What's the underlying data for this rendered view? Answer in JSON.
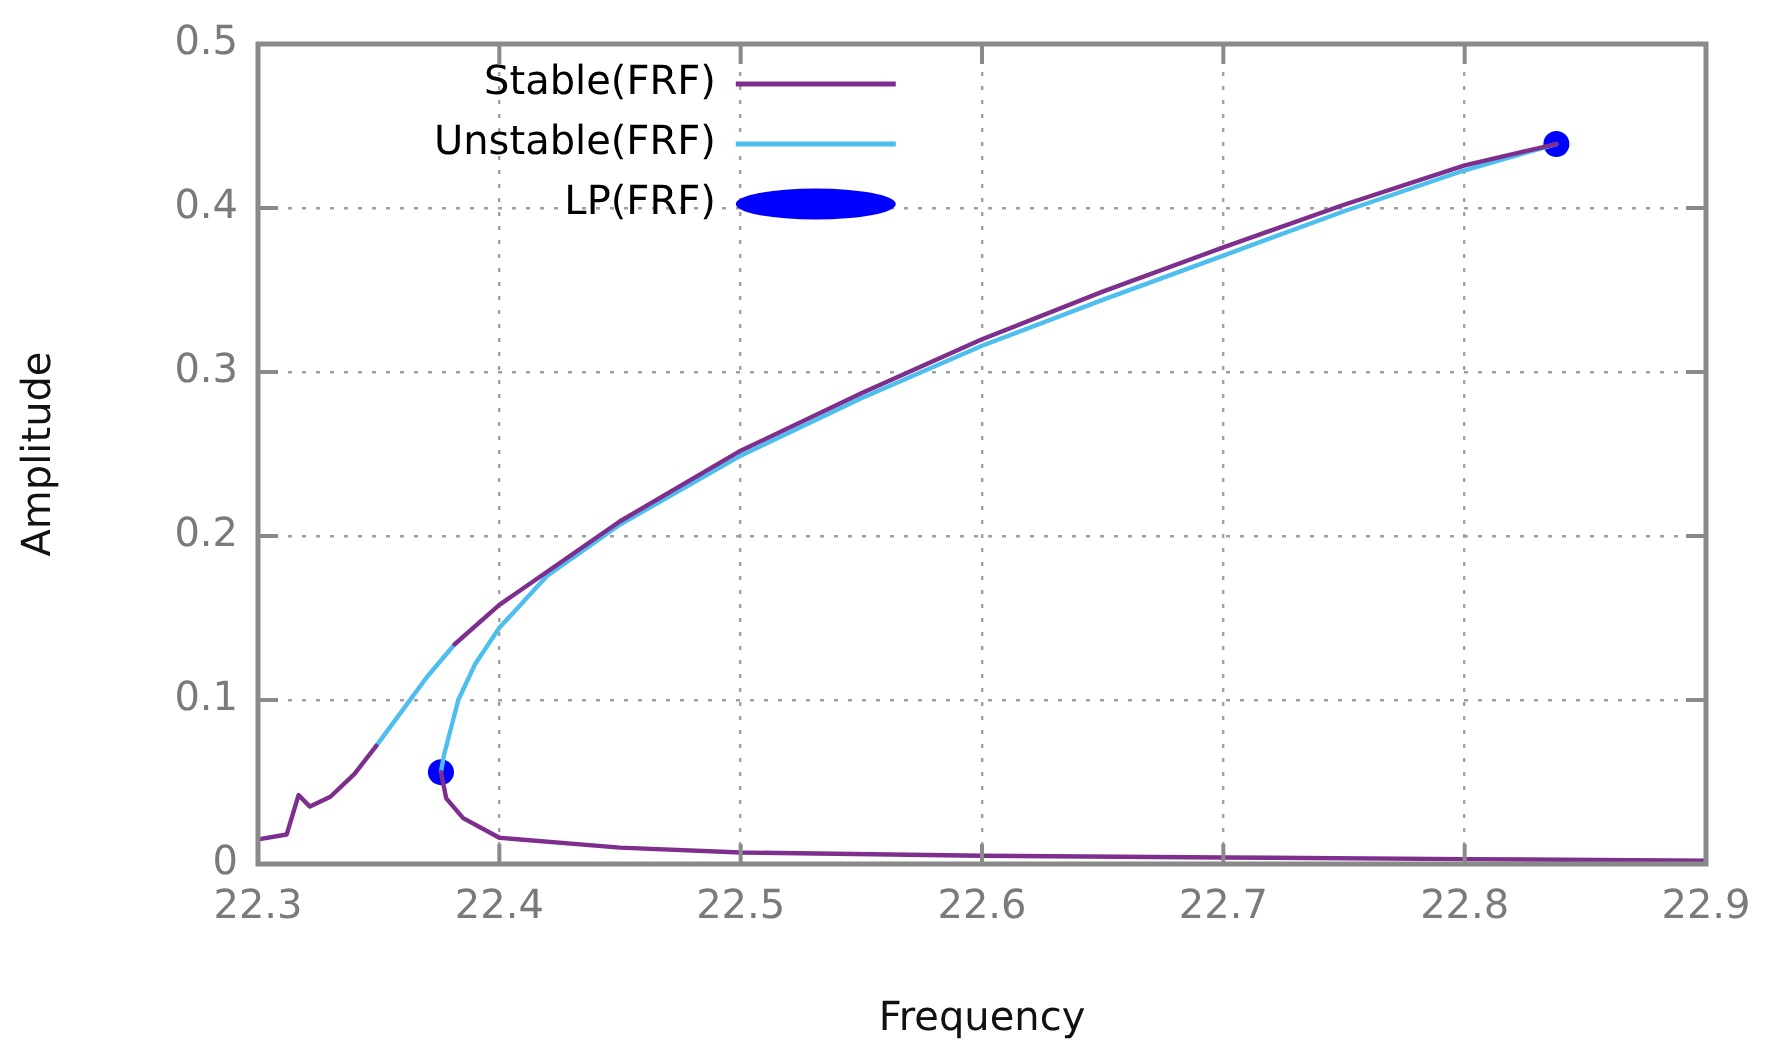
{
  "chart_data": {
    "type": "line",
    "xlabel": "Frequency",
    "ylabel": "Amplitude",
    "xlim": [
      22.3,
      22.9
    ],
    "xticks": [
      22.3,
      22.4,
      22.5,
      22.6,
      22.7,
      22.8,
      22.9
    ],
    "ylim": [
      0,
      0.5
    ],
    "yticks": [
      0,
      0.1,
      0.2,
      0.3,
      0.4,
      0.5
    ],
    "grid": true,
    "legend": "top left",
    "series": [
      {
        "name": "Stable(FRF)",
        "type": "line",
        "color": "#7e2f8e",
        "x": [
          22.3,
          22.3119,
          22.3168,
          22.3215,
          22.33,
          22.34,
          22.349,
          22.36,
          22.3815,
          22.4,
          22.45,
          22.5,
          22.55,
          22.6,
          22.65,
          22.7,
          22.75,
          22.8,
          22.838,
          22.6,
          22.3758,
          22.378,
          22.385,
          22.4,
          22.45,
          22.5,
          22.6,
          22.7,
          22.8,
          22.9
        ],
        "values": [
          0.015,
          0.018,
          0.042,
          0.035,
          0.041,
          0.055,
          0.072,
          null,
          0.134,
          0.158,
          0.209,
          0.252,
          0.287,
          0.32,
          0.349,
          0.376,
          0.402,
          0.426,
          0.439,
          null,
          0.056,
          0.04,
          0.028,
          0.016,
          0.01,
          0.007,
          0.005,
          0.004,
          0.003,
          0.002
        ]
      },
      {
        "name": "Unstable(FRF)",
        "type": "line",
        "color": "#4dbeee",
        "x": [
          22.349,
          22.36,
          22.37,
          22.3815,
          22.6,
          22.838,
          22.8,
          22.75,
          22.7,
          22.65,
          22.6,
          22.55,
          22.5,
          22.45,
          22.42,
          22.4,
          22.39,
          22.383,
          22.377,
          22.3758
        ],
        "values": [
          0.072,
          0.094,
          0.114,
          0.134,
          null,
          0.439,
          0.423,
          0.398,
          0.371,
          0.344,
          0.316,
          0.284,
          0.249,
          0.207,
          0.176,
          0.144,
          0.122,
          0.1,
          0.066,
          0.056
        ]
      },
      {
        "name": "LP(FRF)",
        "type": "scatter",
        "color": "#0000ff",
        "marker": "circle",
        "x": [
          22.3758,
          22.838
        ],
        "values": [
          0.056,
          0.439
        ]
      }
    ]
  }
}
